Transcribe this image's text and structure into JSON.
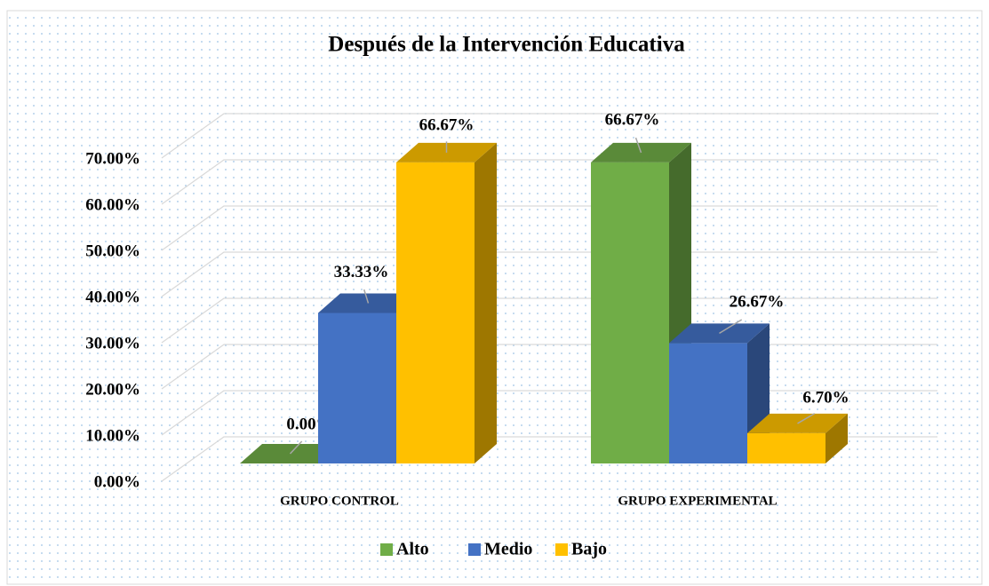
{
  "chart_data": {
    "type": "bar3d",
    "title": "Después de la Intervención Educativa",
    "categories": [
      "GRUPO CONTROL",
      "GRUPO EXPERIMENTAL"
    ],
    "series": [
      {
        "name": "Alto",
        "color": "#70ad47",
        "values": [
          0,
          66.67
        ],
        "value_labels": [
          "0.00%",
          "66.67%"
        ]
      },
      {
        "name": "Medio",
        "color": "#4472c4",
        "values": [
          33.33,
          26.67
        ],
        "value_labels": [
          "33.33%",
          "26.67%"
        ]
      },
      {
        "name": "Bajo",
        "color": "#ffc000",
        "values": [
          66.67,
          6.7
        ],
        "value_labels": [
          "66.67%",
          "6.70%"
        ]
      }
    ],
    "ylim": [
      0,
      70
    ],
    "yticks": [
      {
        "value": 0,
        "label": "0.00%"
      },
      {
        "value": 10,
        "label": "10.00%"
      },
      {
        "value": 20,
        "label": "20.00%"
      },
      {
        "value": 30,
        "label": "30.00%"
      },
      {
        "value": 40,
        "label": "40.00%"
      },
      {
        "value": 50,
        "label": "50.00%"
      },
      {
        "value": 60,
        "label": "60.00%"
      },
      {
        "value": 70,
        "label": "70.00%"
      }
    ],
    "grid": true,
    "legend": "bottom"
  }
}
